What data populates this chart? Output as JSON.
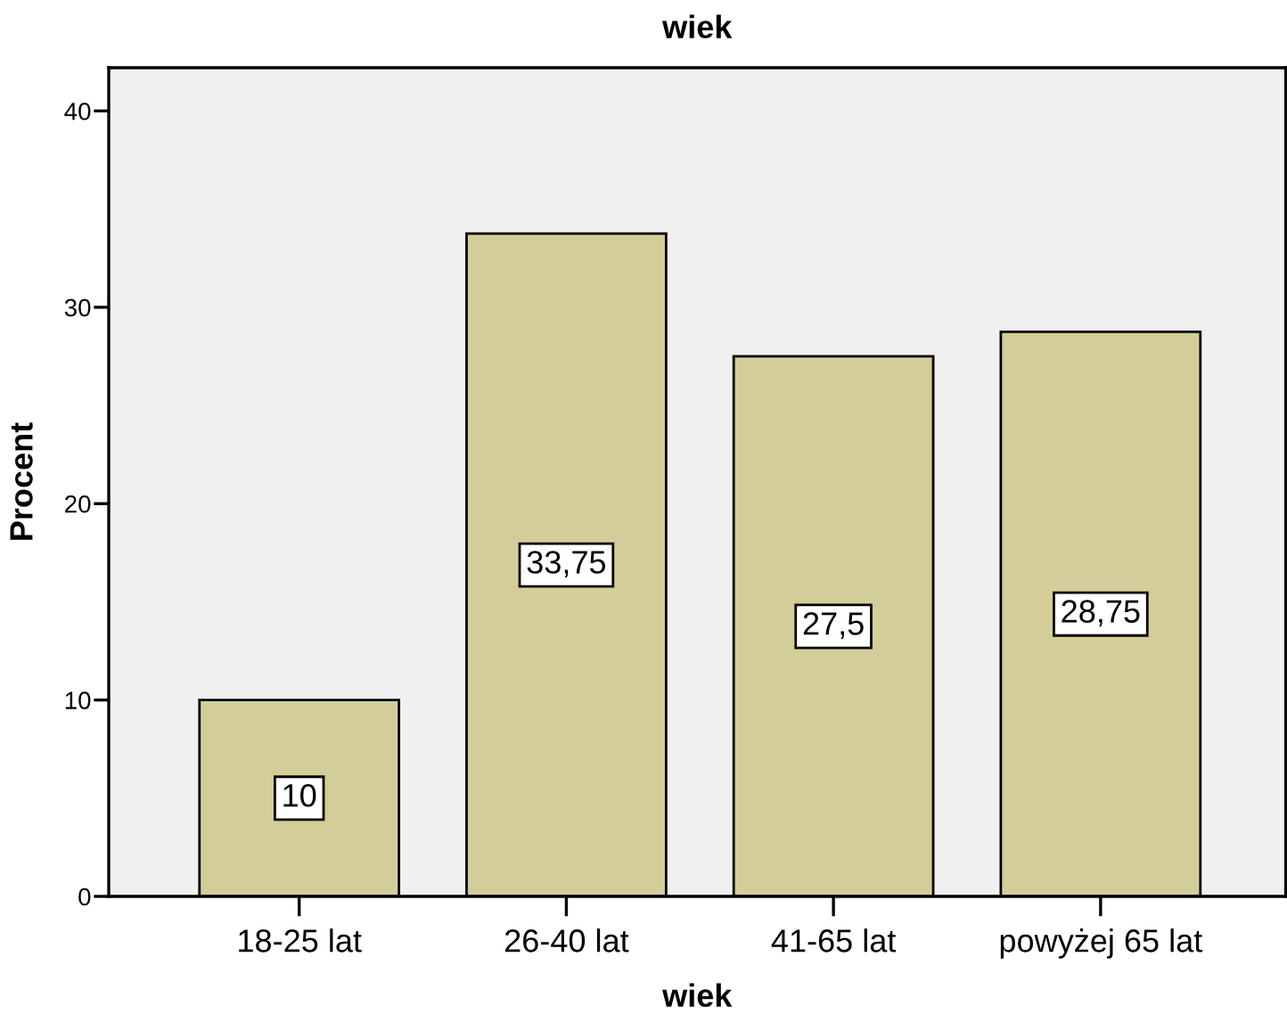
{
  "chart_data": {
    "type": "bar",
    "title": "wiek",
    "xlabel": "wiek",
    "ylabel": "Procent",
    "categories": [
      "18-25 lat",
      "26-40 lat",
      "41-65 lat",
      "powyżej 65 lat"
    ],
    "values": [
      10,
      33.75,
      27.5,
      28.75
    ],
    "value_labels": [
      "10",
      "33,75",
      "27,5",
      "28,75"
    ],
    "color": "#d3ce99",
    "ylim": [
      0,
      42.2
    ],
    "yticks": [
      0,
      10,
      20,
      30,
      40
    ],
    "grid": false,
    "legend": false
  }
}
